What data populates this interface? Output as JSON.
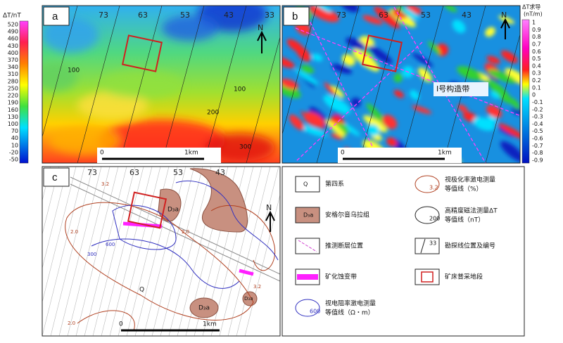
{
  "colorbar_a": {
    "title": "ΔT/nT",
    "ticks": [
      520,
      490,
      460,
      430,
      400,
      370,
      340,
      310,
      280,
      250,
      220,
      190,
      160,
      130,
      100,
      70,
      40,
      10,
      -20,
      -50
    ]
  },
  "colorbar_b": {
    "title": "ΔT求导",
    "unit": "(nT/m)",
    "ticks": [
      1,
      0.9,
      0.8,
      0.7,
      0.6,
      0.5,
      0.4,
      0.3,
      0.2,
      0.1,
      0,
      -0.1,
      -0.2,
      -0.3,
      -0.4,
      -0.5,
      -0.6,
      -0.7,
      -0.8,
      -0.9
    ]
  },
  "panel_a": {
    "label": "a",
    "survey_lines": [
      "73",
      "63",
      "53",
      "43",
      "33"
    ],
    "contours": [
      "100",
      "100",
      "200",
      "300"
    ],
    "north": "N",
    "scale": [
      "0",
      "1km"
    ]
  },
  "panel_b": {
    "label": "b",
    "survey_lines": [
      "73",
      "63",
      "53",
      "43"
    ],
    "zone": "Ⅰ号构造带",
    "north": "N",
    "scale": [
      "0",
      "1km"
    ]
  },
  "panel_c": {
    "label": "c",
    "survey_lines": [
      "73",
      "63",
      "53",
      "43"
    ],
    "formation": [
      "D₃a",
      "D₃a",
      "D₃a"
    ],
    "quaternary": "Q",
    "contours": [
      "3.2",
      "2.0",
      "2.0",
      "300",
      "600",
      "2.0",
      "3.2"
    ],
    "north": "N",
    "scale": [
      "0",
      "1km"
    ]
  },
  "legend": [
    {
      "symbol": "Q",
      "text": "第四系"
    },
    {
      "symbol": "D₃a",
      "text": "安格尔音乌拉组"
    },
    {
      "text": "推测断层位置"
    },
    {
      "text": "矿化蚀变带"
    },
    {
      "symbol": "600",
      "text": "视电阻率激电测量",
      "text2": "等值线（Ω・m）"
    },
    {
      "symbol": "3.2",
      "text": "视极化率激电测量",
      "text2": "等值线（%）"
    },
    {
      "symbol": "200",
      "text": "高精度磁法测量ΔT",
      "text2": "等值线（nT）"
    },
    {
      "symbol": "33",
      "text": "勘探线位置及编号"
    },
    {
      "text": "矿床普采地段"
    }
  ]
}
